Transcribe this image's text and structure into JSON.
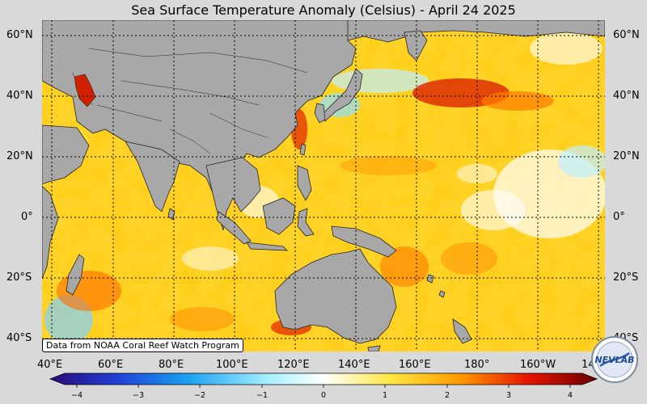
{
  "title": "Sea Surface Temperature Anomaly (Celsius) - April 24 2025",
  "credit": "Data from NOAA Coral Reef Watch Program",
  "lat_labels": [
    "60°N",
    "40°N",
    "20°N",
    "0°",
    "20°S",
    "40°S"
  ],
  "lon_labels": [
    "40°E",
    "60°E",
    "80°E",
    "100°E",
    "120°E",
    "140°E",
    "160°E",
    "180°",
    "160°W",
    "14"
  ],
  "colorbar": {
    "ticks": [
      "−4",
      "−3",
      "−2",
      "−1",
      "0",
      "1",
      "2",
      "3",
      "4"
    ],
    "range": [
      -4,
      4
    ],
    "colors": [
      "#2a0a7a",
      "#1f5fe0",
      "#2fb4f0",
      "#bff0ff",
      "#ffffff",
      "#ffe033",
      "#ff9a00",
      "#e81000",
      "#7a0000"
    ]
  },
  "logo_text": "NEVLAB",
  "colors": {
    "land": "#a8a8a8",
    "ocean_warm": "#ffd21e",
    "ocean_hot": "#e01e00",
    "ocean_cool": "#8fe8ff"
  }
}
